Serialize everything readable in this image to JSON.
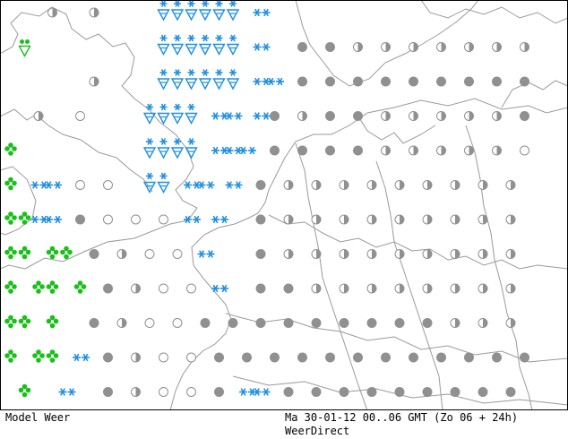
{
  "footer": {
    "model": "Model Weer",
    "run": "Ma 30-01-12 00..06 GMT (Zo 06 + 24h)",
    "credit": "WeerDirect"
  },
  "colors": {
    "snow": "#1e8fe0",
    "rain": "#18c018",
    "cloud": "#909090",
    "coast": "#9a9a9a",
    "frame": "#000000"
  },
  "symbol_legend": {
    "O": "clear-icon",
    "H": "half-cloudy-icon",
    "C": "overcast-icon",
    "S": "snow-icon",
    "W": "snow-shower-icon",
    "R": "rain-icon",
    "V": "rain-shower-icon"
  },
  "grid_symbols": [
    "...H..H....WWWWWW.S....................",
    ".V.........WWWWWW.S..C.C.H.H.H.H.H.H.H.",
    "......H....WWWWWW.SS.C.C.C.C.C.C.C.C.C.",
    "..H..O....WWWW.SS.SC.H.C.C.H.H.H.H.H.C.",
    "R.........WWWW.SSS.C.C.C.C.H.H.H.H.H.O.",
    "R.SS.O.O..WW.SS.S.C.H.H.H.H.H.H.H.H.H..",
    "RRSS.C.O.O.O.S.S..C.H.H.H.H.H.H.H.H.H..",
    "RR.RR.C.H.O.O.S...C.H.H.H.H.H.H.H.H.H..",
    "R.RR.R.C.H.O.O.S..C.C.H.H.H.H.H.H.H.H..",
    "RR.R..C.H.O.O.C.C.C.C.C.C.C.C.C.H.H.H..",
    "R.RR.S.C.H.O.O.C.C.C.C.C.C.C.C.C.C.C.C.",
    ".R..S..C.H.O.O.C.SS.C.C.C.C.C.C.C.C.C.."
  ]
}
